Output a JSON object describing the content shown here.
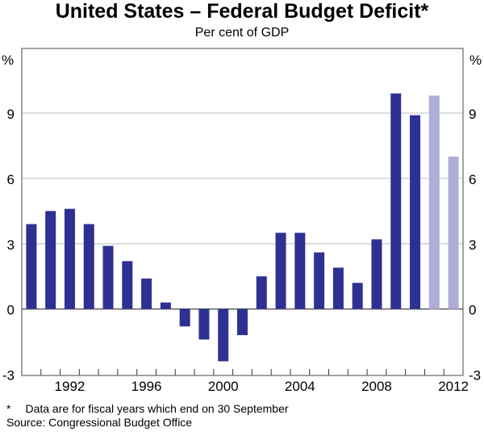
{
  "chart_data": {
    "type": "bar",
    "title": "United States – Federal Budget Deficit*",
    "subtitle": "Per cent of GDP",
    "ylabel_left": "%",
    "ylabel_right": "%",
    "ylim": [
      -3,
      12
    ],
    "yticks": [
      -3,
      0,
      3,
      6,
      9
    ],
    "xtick_labels": [
      "1992",
      "1996",
      "2000",
      "2004",
      "2008",
      "2012"
    ],
    "grid": true,
    "categories": [
      1990,
      1991,
      1992,
      1993,
      1994,
      1995,
      1996,
      1997,
      1998,
      1999,
      2000,
      2001,
      2002,
      2003,
      2004,
      2005,
      2006,
      2007,
      2008,
      2009,
      2010,
      2011,
      2012
    ],
    "values": [
      3.9,
      4.5,
      4.6,
      3.9,
      2.9,
      2.2,
      1.4,
      0.3,
      -0.8,
      -1.4,
      -2.4,
      -1.2,
      1.5,
      3.5,
      3.5,
      2.6,
      1.9,
      1.2,
      3.2,
      9.9,
      8.9,
      9.8,
      7.0
    ],
    "forecast_from": 2011,
    "colors": {
      "actual": "#2e3192",
      "forecast": "#aeadd8"
    },
    "footnote": "Data are for fiscal years which end on 30 September",
    "footnote_marker": "*",
    "source": "Source: Congressional Budget Office"
  }
}
